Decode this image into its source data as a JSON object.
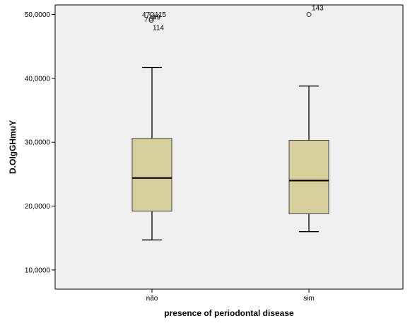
{
  "chart_data": {
    "type": "boxplot",
    "xlabel": "presence of periodontal disease",
    "ylabel": "D.OIgGHmuY",
    "ylim": [
      7000,
      51500
    ],
    "y_ticks": [
      10000,
      20000,
      30000,
      40000,
      50000
    ],
    "y_tick_labels": [
      "10,0000",
      "20,0000",
      "30,0000",
      "40,0000",
      "50,0000"
    ],
    "categories": [
      "não",
      "sim"
    ],
    "grid": false,
    "colors": {
      "plot_bg": "#efefef",
      "box_fill": "#d6cf9c",
      "box_stroke": "#444444",
      "median": "#000000"
    },
    "boxes": [
      {
        "category": "não",
        "whisker_low": 14700,
        "q1": 19200,
        "median": 24400,
        "q3": 30600,
        "whisker_high": 41700,
        "outliers": [
          {
            "value": 50000,
            "label": "47"
          },
          {
            "value": 50000,
            "label": "115"
          },
          {
            "value": 49600,
            "label": "49"
          },
          {
            "value": 49300,
            "label": "7"
          },
          {
            "value": 49100,
            "label": "114"
          }
        ]
      },
      {
        "category": "sim",
        "whisker_low": 16000,
        "q1": 18800,
        "median": 24000,
        "q3": 30300,
        "whisker_high": 38800,
        "outliers": [
          {
            "value": 50000,
            "label": "143"
          }
        ]
      }
    ]
  }
}
